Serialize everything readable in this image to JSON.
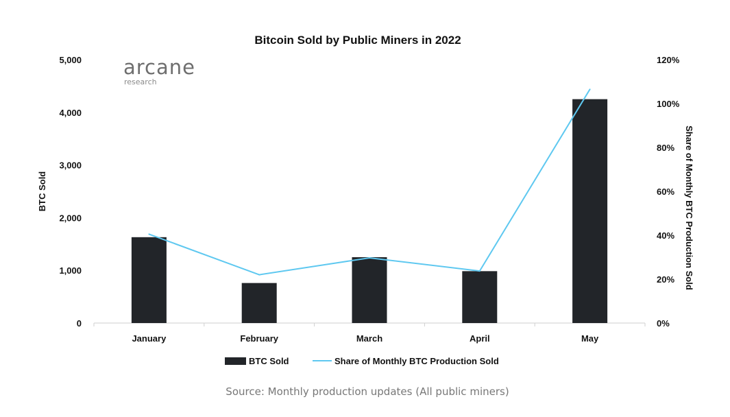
{
  "brand": {
    "name": "arcane",
    "sub": "research"
  },
  "source": "Source: Monthly production updates (All public miners)",
  "chart_data": {
    "type": "bar",
    "title": "Bitcoin Sold by Public Miners in 2022",
    "categories": [
      "January",
      "February",
      "March",
      "April",
      "May"
    ],
    "series": [
      {
        "name": "BTC Sold",
        "type": "bar",
        "axis": "left",
        "color": "#222529",
        "values": [
          1630,
          760,
          1250,
          985,
          4250
        ]
      },
      {
        "name": "Share of Monthly BTC Production Sold",
        "type": "line",
        "axis": "right",
        "color": "#5ec8f0",
        "values": [
          40.5,
          22,
          29.7,
          23.7,
          106.5
        ]
      }
    ],
    "ylabel": "BTC Sold",
    "ylim": [
      0,
      5000
    ],
    "yticks": [
      "0",
      "1,000",
      "2,000",
      "3,000",
      "4,000",
      "5,000"
    ],
    "y2label": "Share of Monthly BTC Production Sold",
    "y2lim": [
      0,
      120
    ],
    "y2ticks": [
      "0%",
      "20%",
      "40%",
      "60%",
      "80%",
      "100%",
      "120%"
    ],
    "grid": false,
    "legend_position": "bottom"
  }
}
